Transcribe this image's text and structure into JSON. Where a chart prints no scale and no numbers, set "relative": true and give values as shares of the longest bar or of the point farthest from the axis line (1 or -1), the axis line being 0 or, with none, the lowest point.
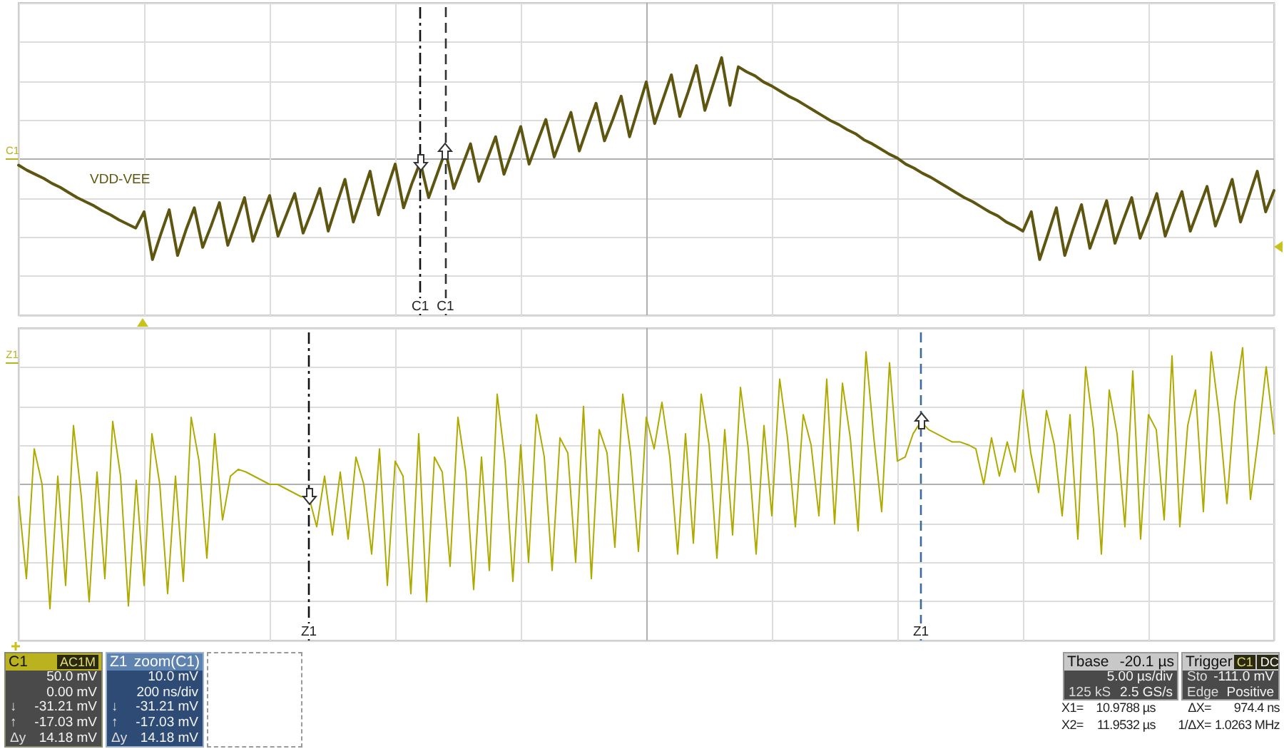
{
  "chart_data": [
    {
      "type": "line",
      "relative": true,
      "categories": [
        null,
        null,
        null,
        null,
        null,
        null,
        null,
        null,
        null,
        null,
        null,
        null,
        null,
        null,
        null,
        null,
        null,
        null,
        null,
        null,
        null,
        null,
        null,
        null,
        null,
        null,
        null,
        null,
        null,
        null,
        null,
        null,
        null,
        null,
        null,
        null,
        null,
        null,
        null,
        null,
        null,
        null,
        null,
        null,
        null,
        null,
        null,
        null,
        null,
        null,
        null,
        null,
        null,
        null,
        null,
        null,
        null,
        null,
        null,
        null,
        null,
        null,
        null,
        null,
        null,
        null,
        null,
        null,
        null,
        null,
        null,
        null,
        null,
        null,
        null,
        null,
        null,
        null,
        null,
        null,
        null,
        null,
        null,
        null,
        null,
        null,
        null,
        null,
        null,
        null,
        null,
        null,
        null,
        null,
        null,
        null,
        null,
        null,
        null,
        null,
        null,
        null,
        null,
        null,
        null,
        null,
        null,
        null,
        null,
        null,
        null,
        null,
        null,
        null,
        null,
        null,
        null,
        null,
        null,
        null,
        null,
        null,
        null,
        null,
        null,
        null,
        null,
        null,
        null,
        null,
        null,
        null,
        null,
        null,
        null,
        null,
        null,
        null,
        null,
        null,
        null,
        null,
        null,
        null,
        null,
        null,
        null,
        null,
        null,
        null,
        null
      ],
      "series": [
        {
          "name": "VDD-VEE",
          "color": "#5e5610",
          "values": [
            -0.06,
            -0.11,
            -0.15,
            -0.19,
            -0.24,
            -0.28,
            -0.33,
            -0.38,
            -0.42,
            -0.46,
            -0.51,
            -0.55,
            -0.6,
            -0.64,
            -0.68,
            -0.52,
            -0.99,
            -0.74,
            -0.5,
            -0.95,
            -0.7,
            -0.48,
            -0.87,
            -0.66,
            -0.43,
            -0.85,
            -0.62,
            -0.38,
            -0.81,
            -0.58,
            -0.36,
            -0.76,
            -0.55,
            -0.34,
            -0.73,
            -0.52,
            -0.29,
            -0.71,
            -0.45,
            -0.2,
            -0.62,
            -0.37,
            -0.12,
            -0.55,
            -0.3,
            -0.05,
            -0.48,
            -0.24,
            -0.03,
            -0.38,
            -0.15,
            0.08,
            -0.29,
            -0.07,
            0.15,
            -0.22,
            0,
            0.22,
            -0.15,
            0.08,
            0.32,
            -0.05,
            0.17,
            0.39,
            0.02,
            0.24,
            0.46,
            0.08,
            0.32,
            0.55,
            0.18,
            0.39,
            0.62,
            0.22,
            0.49,
            0.76,
            0.35,
            0.59,
            0.83,
            0.42,
            0.66,
            0.92,
            0.48,
            0.74,
            1,
            0.53,
            0.91,
            0.86,
            0.82,
            0.76,
            0.72,
            0.67,
            0.62,
            0.58,
            0.53,
            0.48,
            0.43,
            0.38,
            0.34,
            0.29,
            0.25,
            0.19,
            0.15,
            0.1,
            0.05,
            0.01,
            -0.05,
            -0.09,
            -0.14,
            -0.18,
            -0.23,
            -0.28,
            -0.33,
            -0.38,
            -0.42,
            -0.47,
            -0.52,
            -0.56,
            -0.62,
            -0.66,
            -0.71,
            -0.52,
            -0.99,
            -0.74,
            -0.48,
            -0.95,
            -0.69,
            -0.45,
            -0.88,
            -0.65,
            -0.41,
            -0.83,
            -0.6,
            -0.38,
            -0.78,
            -0.57,
            -0.34,
            -0.76,
            -0.53,
            -0.32,
            -0.71,
            -0.49,
            -0.27,
            -0.66,
            -0.44,
            -0.2,
            -0.62,
            -0.37,
            -0.12,
            -0.52,
            -0.31
          ]
        }
      ],
      "grid": true,
      "annotations": [
        "C1",
        "C1",
        "C1"
      ]
    },
    {
      "type": "line",
      "relative": true,
      "categories": [
        null,
        null,
        null,
        null,
        null,
        null,
        null,
        null,
        null,
        null,
        null,
        null,
        null,
        null,
        null,
        null,
        null,
        null,
        null,
        null,
        null,
        null,
        null,
        null,
        null,
        null,
        null,
        null,
        null,
        null,
        null,
        null,
        null,
        null,
        null,
        null,
        null,
        null,
        null,
        null,
        null,
        null,
        null,
        null,
        null,
        null,
        null,
        null,
        null,
        null,
        null,
        null,
        null,
        null,
        null,
        null,
        null,
        null,
        null,
        null,
        null,
        null,
        null,
        null,
        null,
        null,
        null,
        null,
        null,
        null,
        null,
        null,
        null,
        null,
        null,
        null,
        null,
        null,
        null,
        null,
        null,
        null,
        null,
        null,
        null,
        null,
        null,
        null,
        null,
        null,
        null,
        null,
        null,
        null,
        null,
        null,
        null,
        null,
        null,
        null,
        null,
        null,
        null,
        null,
        null,
        null,
        null,
        null,
        null,
        null,
        null,
        null,
        null,
        null,
        null,
        null,
        null,
        null,
        null,
        null,
        null,
        null,
        null,
        null,
        null,
        null,
        null,
        null,
        null,
        null,
        null,
        null,
        null,
        null,
        null,
        null,
        null,
        null,
        null,
        null,
        null,
        null,
        null,
        null,
        null,
        null,
        null,
        null,
        null,
        null,
        null,
        null,
        null,
        null,
        null,
        null,
        null,
        null,
        null,
        null,
        null
      ],
      "series": [
        {
          "color": "#b0aa00",
          "values": [
            -0.09,
            -0.69,
            0.26,
            0,
            -0.91,
            0.06,
            -0.74,
            0.43,
            -0.09,
            -0.86,
            0.09,
            -0.69,
            0.46,
            0.06,
            -0.89,
            0.03,
            -0.74,
            0.37,
            0,
            -0.8,
            0.06,
            -0.71,
            0.49,
            0.17,
            -0.54,
            0.37,
            -0.26,
            0.06,
            0.11,
            0.09,
            0.06,
            0.03,
            0,
            0,
            -0.03,
            -0.06,
            -0.09,
            -0.09,
            -0.31,
            0.06,
            -0.37,
            0.09,
            -0.4,
            0.2,
            0,
            -0.51,
            0.26,
            -0.74,
            0.17,
            0.06,
            -0.8,
            0.37,
            -0.86,
            0.2,
            0.09,
            -0.6,
            0.49,
            0.09,
            -0.77,
            0.2,
            -0.63,
            0.66,
            0.17,
            -0.71,
            0.29,
            -0.57,
            0.51,
            0.2,
            -0.63,
            0.34,
            0.23,
            -0.57,
            0.57,
            -0.69,
            0.4,
            0.23,
            -0.46,
            0.66,
            0.23,
            -0.49,
            0.49,
            0.26,
            0.6,
            0.2,
            -0.51,
            0.37,
            -0.43,
            0.66,
            0.29,
            -0.54,
            0.4,
            -0.37,
            0.71,
            0.26,
            -0.51,
            0.43,
            -0.23,
            0.77,
            0.34,
            -0.31,
            0.51,
            0.29,
            -0.23,
            0.77,
            -0.29,
            0.74,
            0.34,
            -0.34,
            0.97,
            0.34,
            -0.2,
            0.89,
            0.17,
            0.2,
            0.37,
            0.46,
            0.4,
            0.37,
            0.34,
            0.31,
            0.31,
            0.29,
            0.26,
            0,
            0.34,
            0.06,
            0.31,
            0.09,
            0.69,
            0.23,
            -0.06,
            0.54,
            0.29,
            -0.23,
            0.51,
            -0.4,
            0.86,
            0.4,
            -0.51,
            0.69,
            0.37,
            -0.31,
            0.83,
            -0.4,
            0.51,
            0.4,
            -0.26,
            0.94,
            -0.31,
            0.43,
            0.69,
            -0.2,
            0.97,
            0.51,
            -0.14,
            0.6,
            1,
            -0.11,
            0.34,
            0.86,
            0.37
          ]
        }
      ],
      "grid": true,
      "annotations": [
        "Z1",
        "Z1",
        "Z1"
      ]
    },
    {
      "type": "other",
      "title": "C1",
      "subtitle": "AC1M",
      "annotations": [
        "50.0 mV",
        "0.00 mV",
        "↓",
        "-31.21 mV",
        "↑",
        "-17.03 mV",
        "Δy",
        "14.18 mV"
      ]
    },
    {
      "type": "other",
      "title": "Z1",
      "subtitle": "zoom(C1)",
      "annotations": [
        "10.0 mV",
        "200 ns/div",
        "↓",
        "-31.21 mV",
        "↑",
        "-17.03 mV",
        "Δy",
        "14.18 mV"
      ]
    },
    {
      "type": "other",
      "title": "Tbase",
      "subtitle": "-20.1 µs",
      "annotations": [
        "5.00 µs/div",
        "125 kS",
        "2.5 GS/s"
      ]
    },
    {
      "type": "other",
      "title": "Trigger",
      "annotations": [
        "C1",
        "DC",
        "Sto",
        "-111.0 mV",
        "Edge",
        "Positive"
      ]
    },
    {
      "type": "other",
      "annotations": [
        "X1=",
        "10.9788 µs",
        "ΔX=",
        "974.4 ns",
        "X2=",
        "11.9532 µs",
        "1/ΔX=",
        "1.0263 MHz"
      ]
    }
  ]
}
